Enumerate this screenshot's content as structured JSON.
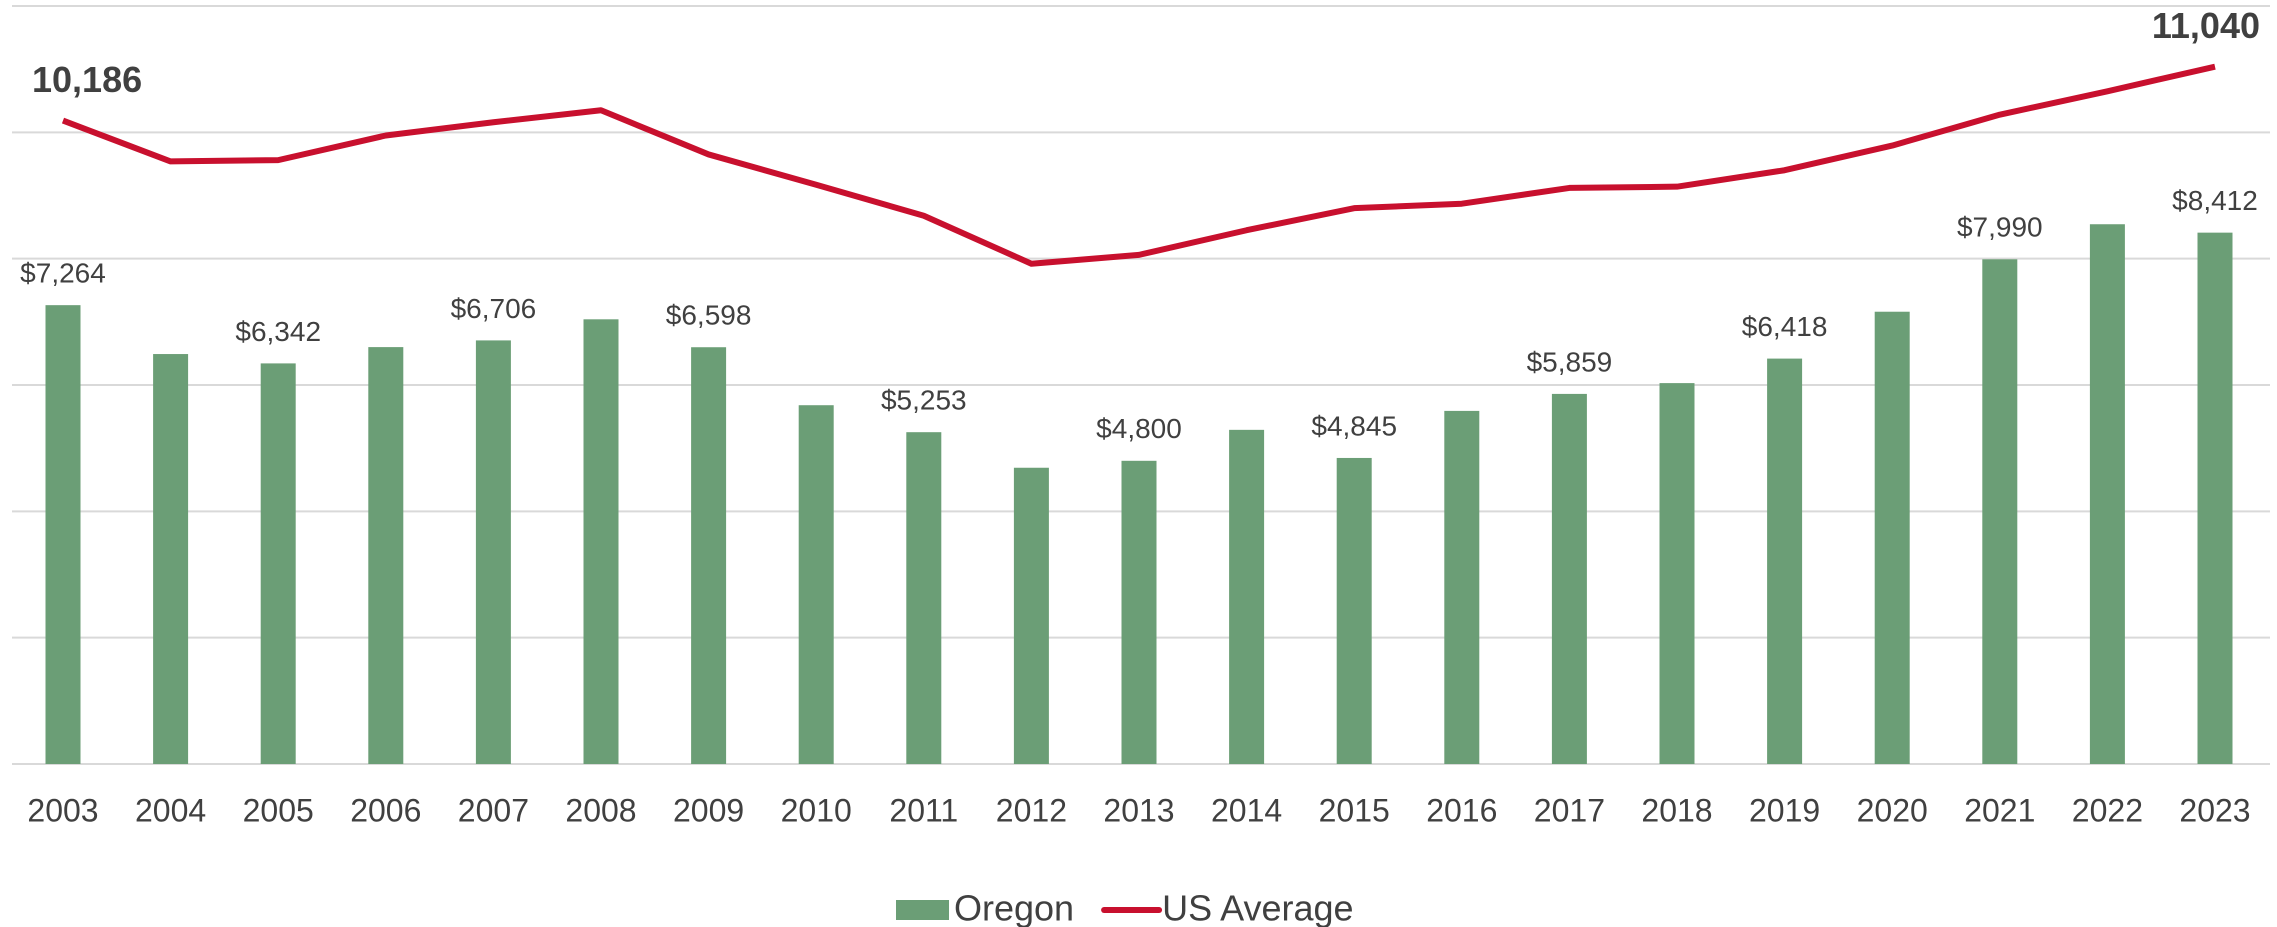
{
  "chart_data": {
    "type": "bar_line",
    "categories": [
      "2003",
      "2004",
      "2005",
      "2006",
      "2007",
      "2008",
      "2009",
      "2010",
      "2011",
      "2012",
      "2013",
      "2014",
      "2015",
      "2016",
      "2017",
      "2018",
      "2019",
      "2020",
      "2021",
      "2022",
      "2023"
    ],
    "series": [
      {
        "name": "Oregon",
        "type": "bar",
        "color": "#6b9e76",
        "values": [
          7264,
          6490,
          6342,
          6600,
          6706,
          7040,
          6598,
          5680,
          5253,
          4690,
          4800,
          5290,
          4845,
          5590,
          5859,
          6030,
          6418,
          7160,
          7990,
          8545,
          8412
        ],
        "value_labels": [
          "$7,264",
          null,
          "$6,342",
          null,
          "$6,706",
          null,
          "$6,598",
          null,
          "$5,253",
          null,
          "$4,800",
          null,
          "$4,845",
          null,
          "$5,859",
          null,
          "$6,418",
          null,
          "$7,990",
          null,
          "$8,412"
        ]
      },
      {
        "name": "US Average",
        "type": "line",
        "color": "#c8102e",
        "values": [
          10186,
          9540,
          9560,
          9950,
          10160,
          10350,
          9650,
          9170,
          8680,
          7920,
          8060,
          8450,
          8800,
          8870,
          9120,
          9140,
          9400,
          9790,
          10280,
          10650,
          11040
        ],
        "value_labels": [
          "10,186",
          null,
          null,
          null,
          null,
          null,
          null,
          null,
          null,
          null,
          null,
          null,
          null,
          null,
          null,
          null,
          null,
          null,
          null,
          null,
          "11,040"
        ]
      }
    ],
    "ylim": [
      0,
      12000
    ],
    "yticks": [
      0,
      2000,
      4000,
      6000,
      8000,
      10000,
      12000
    ],
    "grid": true,
    "legend": "bottom"
  }
}
